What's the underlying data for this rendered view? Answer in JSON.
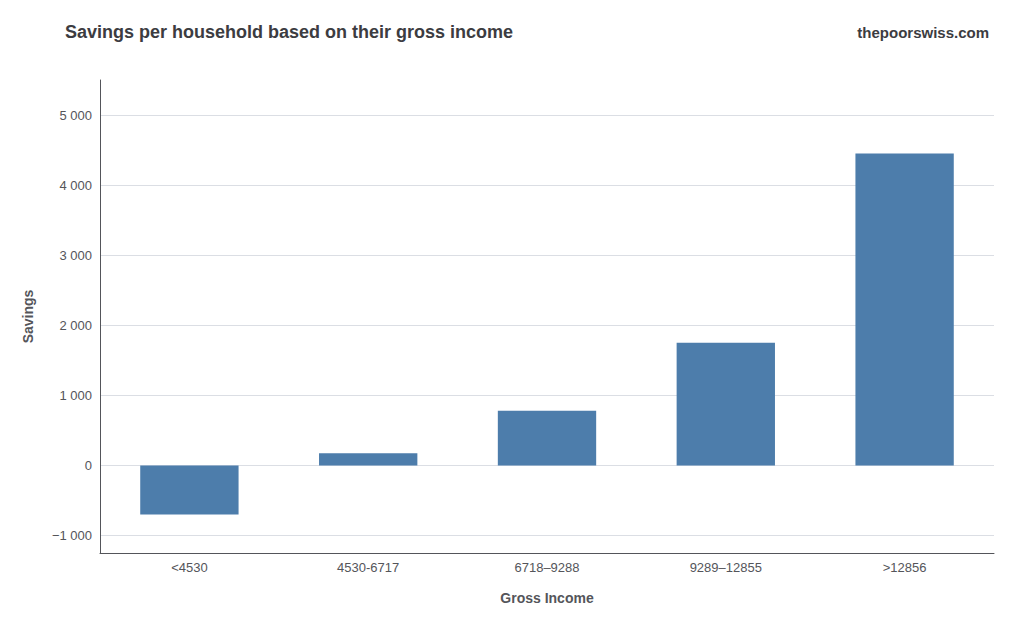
{
  "chart_data": {
    "type": "bar",
    "title": "Savings per household based on their gross income",
    "watermark": "thepoorswiss.com",
    "xlabel": "Gross Income",
    "ylabel": "Savings",
    "categories": [
      "<4530",
      "4530-6717",
      "6718–9288",
      "9289–12855",
      ">12856"
    ],
    "values": [
      -700,
      175,
      780,
      1750,
      4450
    ],
    "color": "#4d7dab",
    "ylim": [
      -1250,
      5500
    ],
    "yticks": [
      {
        "value": -1000,
        "label": "−1 000"
      },
      0,
      {
        "value": 1000,
        "label": "1 000"
      },
      {
        "value": 2000,
        "label": "2 000"
      },
      {
        "value": 3000,
        "label": "3 000"
      },
      {
        "value": 4000,
        "label": "4 000"
      },
      {
        "value": 5000,
        "label": "5 000"
      }
    ],
    "grid": true
  }
}
